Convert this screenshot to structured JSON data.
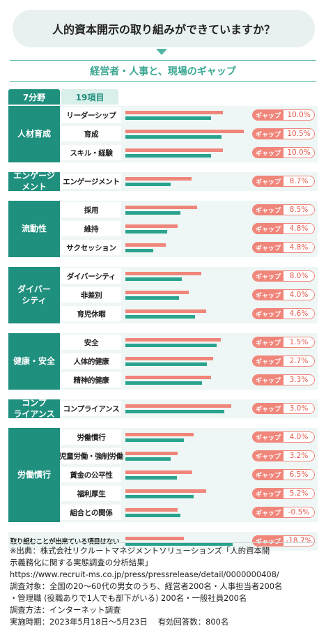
{
  "question": "人的資本開示の取り組みができていますか？",
  "subtitle": "経営者・人事と、現場のギャップ",
  "header": {
    "categories": "7分野",
    "items": "19項目"
  },
  "gap_label": "ギャップ",
  "chart_data": {
    "type": "bar",
    "title": "経営者・人事と、現場のギャップ",
    "orientation": "horizontal",
    "groups": [
      {
        "category": "人材育成",
        "items": [
          {
            "label": "リーダーシップ",
            "exec": 0.8,
            "staff": 0.7,
            "gap": "10.0%"
          },
          {
            "label": "育成",
            "exec": 0.97,
            "staff": 0.79,
            "gap": "10.5%"
          },
          {
            "label": "スキル・経験",
            "exec": 0.8,
            "staff": 0.7,
            "gap": "10.0%"
          }
        ]
      },
      {
        "category": "エンゲージ\nメント",
        "items": [
          {
            "label": "エンゲージメント",
            "exec": 0.54,
            "staff": 0.37,
            "gap": "8.7%"
          }
        ]
      },
      {
        "category": "流動性",
        "items": [
          {
            "label": "採用",
            "exec": 0.59,
            "staff": 0.45,
            "gap": "8.5%"
          },
          {
            "label": "維持",
            "exec": 0.43,
            "staff": 0.34,
            "gap": "4.8%"
          },
          {
            "label": "サクセッション",
            "exec": 0.33,
            "staff": 0.23,
            "gap": "4.8%"
          }
        ]
      },
      {
        "category": "ダイバー\nシティ",
        "items": [
          {
            "label": "ダイバーシティ",
            "exec": 0.62,
            "staff": 0.46,
            "gap": "8.0%"
          },
          {
            "label": "非差別",
            "exec": 0.52,
            "staff": 0.44,
            "gap": "4.0%"
          },
          {
            "label": "育児休暇",
            "exec": 0.66,
            "staff": 0.57,
            "gap": "4.6%"
          }
        ]
      },
      {
        "category": "健康・安全",
        "items": [
          {
            "label": "安全",
            "exec": 0.78,
            "staff": 0.75,
            "gap": "1.5%"
          },
          {
            "label": "人体的健康",
            "exec": 0.72,
            "staff": 0.67,
            "gap": "2.7%"
          },
          {
            "label": "精神的健康",
            "exec": 0.7,
            "staff": 0.63,
            "gap": "3.3%"
          }
        ]
      },
      {
        "category": "コンプ\nライアンス",
        "items": [
          {
            "label": "コンプライアンス",
            "exec": 0.87,
            "staff": 0.81,
            "gap": "3.0%"
          }
        ]
      },
      {
        "category": "労働慣行",
        "items": [
          {
            "label": "労働慣行",
            "exec": 0.56,
            "staff": 0.48,
            "gap": "4.0%"
          },
          {
            "label": "児童労働・強制労働",
            "exec": 0.43,
            "staff": 0.37,
            "gap": "3.2%"
          },
          {
            "label": "賃金の公平性",
            "exec": 0.55,
            "staff": 0.42,
            "gap": "6.5%"
          },
          {
            "label": "福利厚生",
            "exec": 0.66,
            "staff": 0.56,
            "gap": "5.2%"
          },
          {
            "label": "組合との関係",
            "exec": 0.43,
            "staff": 0.45,
            "gap": "-0.5%"
          }
        ]
      },
      {
        "category": "",
        "items": [
          {
            "label": "取り組むことが出来ている項目はない",
            "exec": 0.48,
            "staff": 0.88,
            "gap": "-18.7%"
          }
        ]
      }
    ]
  },
  "notes": [
    "※出典：株式会社リクルートマネジメントソリューションズ「人的資本開",
    "示義務化に関する実態調査の分析結果」",
    "https://www.recruit-ms.co.jp/press/pressrelease/detail/0000000408/",
    "調査対象：全国の20～60代の男女のうち、経営者200名・人事担当者200名",
    "・管理職 (役職ありで1人でも部下がいる) 200名・一般社員200名",
    "調査方法：インターネット調査",
    "実施時期：2023年5月18日～5月23日　 有効回答数：800名"
  ],
  "colors": {
    "exec": "#f0857a",
    "staff": "#2aa38e",
    "category": "#1f8f7e",
    "gap": "#e35b4d"
  }
}
